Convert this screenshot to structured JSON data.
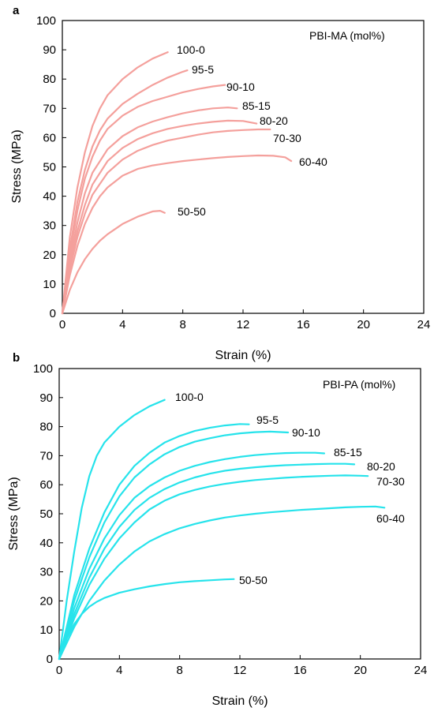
{
  "chart_data": [
    {
      "panel": "a",
      "type": "line",
      "legend_title": "PBI-MA (mol%)",
      "xlabel": "Strain (%)",
      "ylabel": "Stress (MPa)",
      "xlim": [
        0,
        24
      ],
      "ylim": [
        0,
        100
      ],
      "xticks": [
        0,
        4,
        8,
        12,
        16,
        20,
        24
      ],
      "yticks": [
        0,
        10,
        20,
        30,
        40,
        50,
        60,
        70,
        80,
        90,
        100
      ],
      "color": "#f4a09c",
      "series": [
        {
          "name": "100-0",
          "points": [
            [
              0,
              0
            ],
            [
              0.5,
              26
            ],
            [
              1,
              43
            ],
            [
              1.5,
              55
            ],
            [
              2,
              64
            ],
            [
              2.5,
              70
            ],
            [
              3,
              74.5
            ],
            [
              4,
              80
            ],
            [
              5,
              84
            ],
            [
              6,
              87
            ],
            [
              7,
              89.2
            ]
          ]
        },
        {
          "name": "95-5",
          "points": [
            [
              0,
              0
            ],
            [
              0.5,
              22
            ],
            [
              1,
              38
            ],
            [
              1.5,
              49
            ],
            [
              2,
              57
            ],
            [
              2.5,
              62.5
            ],
            [
              3,
              66.5
            ],
            [
              4,
              71.5
            ],
            [
              5,
              75
            ],
            [
              6,
              78
            ],
            [
              7,
              80.5
            ],
            [
              8,
              82.5
            ],
            [
              8.3,
              83
            ]
          ]
        },
        {
          "name": "90-10",
          "points": [
            [
              0,
              0
            ],
            [
              0.5,
              20
            ],
            [
              1,
              35
            ],
            [
              1.5,
              46
            ],
            [
              2,
              53.5
            ],
            [
              2.5,
              59
            ],
            [
              3,
              63
            ],
            [
              4,
              67.5
            ],
            [
              5,
              70.5
            ],
            [
              6,
              72.5
            ],
            [
              7,
              74
            ],
            [
              8,
              75.5
            ],
            [
              9,
              76.6
            ],
            [
              10,
              77.5
            ],
            [
              10.8,
              78
            ]
          ]
        },
        {
          "name": "85-15",
          "points": [
            [
              0,
              0
            ],
            [
              0.5,
              18
            ],
            [
              1,
              31
            ],
            [
              1.5,
              41
            ],
            [
              2,
              48
            ],
            [
              3,
              56
            ],
            [
              4,
              60.5
            ],
            [
              5,
              63.5
            ],
            [
              6,
              65.5
            ],
            [
              7,
              67
            ],
            [
              8,
              68.3
            ],
            [
              9,
              69.3
            ],
            [
              10,
              70
            ],
            [
              11,
              70.3
            ],
            [
              11.6,
              70
            ]
          ]
        },
        {
          "name": "80-20",
          "points": [
            [
              0,
              0
            ],
            [
              0.5,
              16
            ],
            [
              1,
              28
            ],
            [
              1.5,
              37
            ],
            [
              2,
              44
            ],
            [
              3,
              52
            ],
            [
              4,
              56.5
            ],
            [
              5,
              59.5
            ],
            [
              6,
              61.5
            ],
            [
              7,
              63
            ],
            [
              8,
              64
            ],
            [
              9,
              64.8
            ],
            [
              10,
              65.4
            ],
            [
              11,
              65.8
            ],
            [
              12,
              65.7
            ],
            [
              12.9,
              64.8
            ]
          ]
        },
        {
          "name": "70-30",
          "points": [
            [
              0,
              0
            ],
            [
              0.5,
              15
            ],
            [
              1,
              26
            ],
            [
              1.5,
              34
            ],
            [
              2,
              40.5
            ],
            [
              3,
              48
            ],
            [
              4,
              52.5
            ],
            [
              5,
              55.5
            ],
            [
              6,
              57.5
            ],
            [
              7,
              59
            ],
            [
              8,
              60
            ],
            [
              9,
              61
            ],
            [
              10,
              61.8
            ],
            [
              11,
              62.3
            ],
            [
              12,
              62.6
            ],
            [
              13,
              62.8
            ],
            [
              13.8,
              62.8
            ]
          ]
        },
        {
          "name": "60-40",
          "points": [
            [
              0,
              0
            ],
            [
              0.5,
              13
            ],
            [
              1,
              23
            ],
            [
              1.5,
              30.5
            ],
            [
              2,
              36
            ],
            [
              2.5,
              40
            ],
            [
              3,
              43
            ],
            [
              4,
              47
            ],
            [
              5,
              49.3
            ],
            [
              6,
              50.5
            ],
            [
              7,
              51.3
            ],
            [
              8,
              52
            ],
            [
              9,
              52.5
            ],
            [
              10,
              53
            ],
            [
              11,
              53.4
            ],
            [
              12,
              53.7
            ],
            [
              13,
              53.9
            ],
            [
              14,
              53.8
            ],
            [
              14.8,
              53.3
            ],
            [
              15.2,
              52
            ]
          ]
        },
        {
          "name": "50-50",
          "points": [
            [
              0,
              0
            ],
            [
              0.5,
              8
            ],
            [
              1,
              14
            ],
            [
              1.5,
              18.5
            ],
            [
              2,
              22
            ],
            [
              2.5,
              24.8
            ],
            [
              3,
              27
            ],
            [
              4,
              30.5
            ],
            [
              5,
              33
            ],
            [
              6,
              34.8
            ],
            [
              6.5,
              35
            ],
            [
              6.8,
              34.3
            ]
          ]
        }
      ]
    },
    {
      "panel": "b",
      "type": "line",
      "legend_title": "PBI-PA (mol%)",
      "xlabel": "Strain (%)",
      "ylabel": "Stress (MPa)",
      "xlim": [
        0,
        24
      ],
      "ylim": [
        0,
        100
      ],
      "xticks": [
        0,
        4,
        8,
        12,
        16,
        20,
        24
      ],
      "yticks": [
        0,
        10,
        20,
        30,
        40,
        50,
        60,
        70,
        80,
        90,
        100
      ],
      "color": "#26e3eb",
      "series": [
        {
          "name": "100-0",
          "points": [
            [
              0,
              0
            ],
            [
              0.5,
              20
            ],
            [
              1,
              37
            ],
            [
              1.5,
              52
            ],
            [
              2,
              63
            ],
            [
              2.5,
              70
            ],
            [
              3,
              74.5
            ],
            [
              4,
              80
            ],
            [
              5,
              84
            ],
            [
              6,
              87
            ],
            [
              7,
              89.2
            ]
          ]
        },
        {
          "name": "95-5",
          "points": [
            [
              0,
              0
            ],
            [
              1,
              22
            ],
            [
              2,
              38
            ],
            [
              3,
              50.5
            ],
            [
              4,
              60
            ],
            [
              5,
              66.5
            ],
            [
              6,
              71
            ],
            [
              7,
              74.5
            ],
            [
              8,
              76.8
            ],
            [
              9,
              78.5
            ],
            [
              10,
              79.6
            ],
            [
              11,
              80.4
            ],
            [
              12,
              80.9
            ],
            [
              12.6,
              80.8
            ]
          ]
        },
        {
          "name": "90-10",
          "points": [
            [
              0,
              0
            ],
            [
              1,
              20
            ],
            [
              2,
              35
            ],
            [
              3,
              47
            ],
            [
              4,
              56
            ],
            [
              5,
              62.5
            ],
            [
              6,
              67
            ],
            [
              7,
              70.5
            ],
            [
              8,
              73
            ],
            [
              9,
              74.8
            ],
            [
              10,
              76
            ],
            [
              11,
              77
            ],
            [
              12,
              77.7
            ],
            [
              13,
              78.1
            ],
            [
              14,
              78.3
            ],
            [
              15.2,
              78
            ]
          ]
        },
        {
          "name": "85-15",
          "points": [
            [
              0,
              0
            ],
            [
              1,
              17.5
            ],
            [
              2,
              31
            ],
            [
              3,
              41.5
            ],
            [
              4,
              49.5
            ],
            [
              5,
              55.5
            ],
            [
              6,
              59.5
            ],
            [
              7,
              62.5
            ],
            [
              8,
              64.8
            ],
            [
              9,
              66.5
            ],
            [
              10,
              67.8
            ],
            [
              11,
              68.8
            ],
            [
              12,
              69.6
            ],
            [
              13,
              70.2
            ],
            [
              14,
              70.6
            ],
            [
              15,
              70.9
            ],
            [
              16,
              71
            ],
            [
              17,
              71
            ],
            [
              17.6,
              70.8
            ]
          ]
        },
        {
          "name": "80-20",
          "points": [
            [
              0,
              0
            ],
            [
              1,
              15.5
            ],
            [
              2,
              28
            ],
            [
              3,
              38
            ],
            [
              4,
              45.5
            ],
            [
              5,
              51.3
            ],
            [
              6,
              55.5
            ],
            [
              7,
              58.5
            ],
            [
              8,
              60.8
            ],
            [
              9,
              62.5
            ],
            [
              10,
              63.8
            ],
            [
              11,
              64.8
            ],
            [
              12,
              65.5
            ],
            [
              13,
              66
            ],
            [
              14,
              66.4
            ],
            [
              15,
              66.7
            ],
            [
              16,
              66.9
            ],
            [
              17,
              67.1
            ],
            [
              18,
              67.2
            ],
            [
              19,
              67.2
            ],
            [
              19.6,
              67
            ]
          ]
        },
        {
          "name": "70-30",
          "points": [
            [
              0,
              0
            ],
            [
              1,
              14
            ],
            [
              2,
              25.5
            ],
            [
              3,
              34.5
            ],
            [
              4,
              41.5
            ],
            [
              5,
              47
            ],
            [
              6,
              51.5
            ],
            [
              7,
              54.5
            ],
            [
              8,
              56.7
            ],
            [
              9,
              58.2
            ],
            [
              10,
              59.4
            ],
            [
              11,
              60.3
            ],
            [
              12,
              61
            ],
            [
              13,
              61.6
            ],
            [
              14,
              62
            ],
            [
              15,
              62.4
            ],
            [
              16,
              62.7
            ],
            [
              17,
              62.9
            ],
            [
              18,
              63.1
            ],
            [
              19,
              63.2
            ],
            [
              20,
              63.1
            ],
            [
              20.5,
              63
            ]
          ]
        },
        {
          "name": "60-40",
          "points": [
            [
              0,
              0
            ],
            [
              1,
              11
            ],
            [
              2,
              20
            ],
            [
              3,
              27
            ],
            [
              4,
              32.5
            ],
            [
              5,
              37
            ],
            [
              6,
              40.5
            ],
            [
              7,
              43
            ],
            [
              8,
              45
            ],
            [
              9,
              46.5
            ],
            [
              10,
              47.7
            ],
            [
              11,
              48.7
            ],
            [
              12,
              49.4
            ],
            [
              13,
              50
            ],
            [
              14,
              50.5
            ],
            [
              15,
              50.9
            ],
            [
              16,
              51.3
            ],
            [
              17,
              51.6
            ],
            [
              18,
              51.9
            ],
            [
              19,
              52.2
            ],
            [
              20,
              52.4
            ],
            [
              21,
              52.5
            ],
            [
              21.6,
              52.1
            ]
          ]
        },
        {
          "name": "50-50",
          "points": [
            [
              0,
              0
            ],
            [
              0.5,
              7
            ],
            [
              1,
              12
            ],
            [
              1.5,
              15.5
            ],
            [
              2,
              18
            ],
            [
              2.5,
              19.7
            ],
            [
              3,
              21
            ],
            [
              4,
              22.8
            ],
            [
              5,
              24
            ],
            [
              6,
              25
            ],
            [
              7,
              25.8
            ],
            [
              8,
              26.4
            ],
            [
              9,
              26.8
            ],
            [
              10,
              27.1
            ],
            [
              11,
              27.4
            ],
            [
              11.6,
              27.5
            ]
          ]
        }
      ]
    }
  ]
}
